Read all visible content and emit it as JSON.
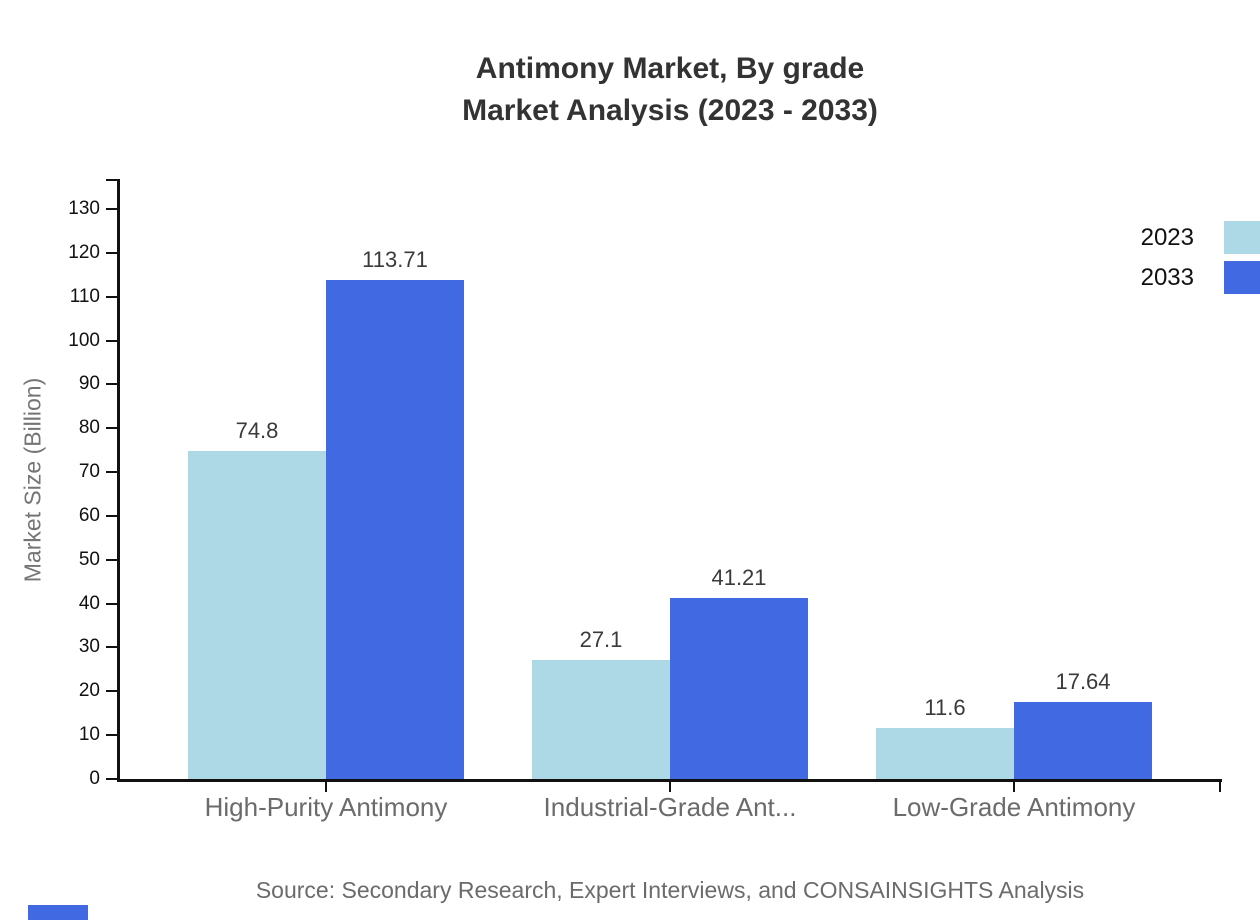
{
  "title": {
    "line1": "Antimony Market, By grade",
    "line2": "Market Analysis (2023 - 2033)"
  },
  "source": "Source: Secondary Research, Expert Interviews, and CONSAINSIGHTS Analysis",
  "colors": {
    "series_2023": "#ADD8E6",
    "series_2033": "#4169E1",
    "axis": "#111111",
    "title_text": "#333333",
    "category_text": "#6b6b6b",
    "value_text": "#3a3a3a"
  },
  "chart_data": {
    "type": "bar",
    "title": "Antimony Market, By grade Market Analysis (2023 - 2033)",
    "categories": [
      "High-Purity Antimony",
      "Industrial-Grade Ant...",
      "Low-Grade Antimony"
    ],
    "series": [
      {
        "name": "2023",
        "color": "#ADD8E6",
        "values": [
          74.8,
          27.1,
          11.6
        ],
        "labels": [
          "74.8",
          "27.1",
          "11.6"
        ]
      },
      {
        "name": "2033",
        "color": "#4169E1",
        "values": [
          113.71,
          41.21,
          17.64
        ],
        "labels": [
          "113.71",
          "41.21",
          "17.64"
        ]
      }
    ],
    "xlabel": "",
    "ylabel": "Market Size (Billion)",
    "ylim": [
      0,
      130
    ],
    "yticks": [
      0,
      10,
      20,
      30,
      40,
      50,
      60,
      70,
      80,
      90,
      100,
      110,
      120,
      130
    ],
    "grid": false,
    "legend_position": "top-right"
  }
}
